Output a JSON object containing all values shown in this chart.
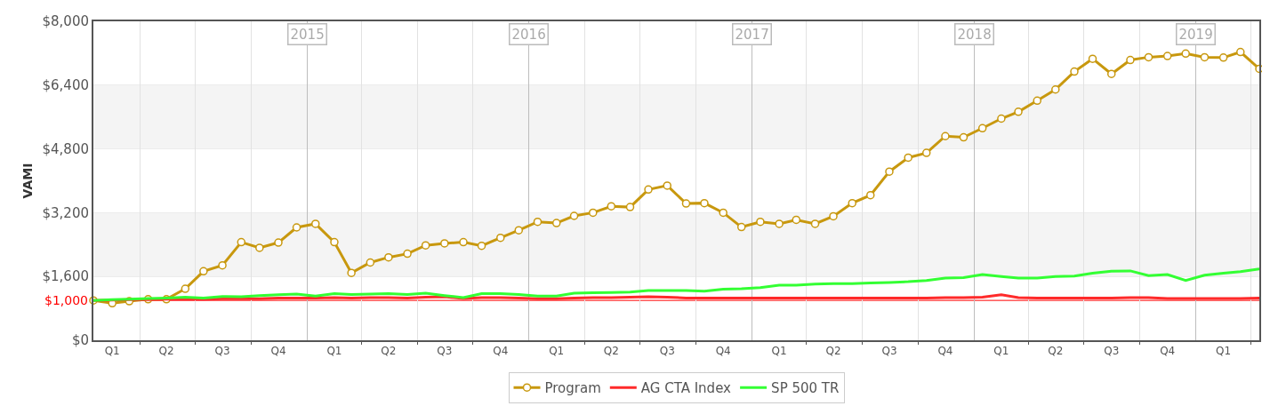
{
  "chart_data": {
    "type": "line",
    "ylabel": "VAMI",
    "x": [
      "2014-01-15",
      "2014-02-15",
      "2014-03-15",
      "2014-04-15",
      "2014-05-15",
      "2014-06-15",
      "2014-07-15",
      "2014-08-15",
      "2014-09-15",
      "2014-10-15",
      "2014-11-15",
      "2014-12-15",
      "2015-01-15",
      "2015-02-15",
      "2015-03-15",
      "2015-04-15",
      "2015-05-15",
      "2015-06-15",
      "2015-07-15",
      "2015-08-15",
      "2015-09-15",
      "2015-10-15",
      "2015-11-15",
      "2015-12-15",
      "2016-01-15",
      "2016-02-15",
      "2016-03-15",
      "2016-04-15",
      "2016-05-15",
      "2016-06-15",
      "2016-07-15",
      "2016-08-15",
      "2016-09-15",
      "2016-10-15",
      "2016-11-15",
      "2016-12-15",
      "2017-01-15",
      "2017-02-15",
      "2017-03-15",
      "2017-04-15",
      "2017-05-15",
      "2017-06-15",
      "2017-07-15",
      "2017-08-15",
      "2017-09-15",
      "2017-10-15",
      "2017-11-15",
      "2017-12-15",
      "2018-01-15",
      "2018-02-15",
      "2018-03-15",
      "2018-04-15",
      "2018-05-15",
      "2018-06-15",
      "2018-07-15",
      "2018-08-15",
      "2018-09-15",
      "2018-10-15",
      "2018-11-15",
      "2018-12-15",
      "2019-01-15",
      "2019-02-15",
      "2019-03-15",
      "2019-04-15"
    ],
    "series": [
      {
        "name": "Program",
        "color": "#c8980e",
        "marker": "circle",
        "values": [
          1000,
          930,
          980,
          1030,
          1030,
          1290,
          1730,
          1880,
          2460,
          2320,
          2450,
          2830,
          2920,
          2460,
          1690,
          1950,
          2080,
          2170,
          2380,
          2430,
          2460,
          2370,
          2570,
          2760,
          2970,
          2940,
          3120,
          3200,
          3360,
          3340,
          3780,
          3880,
          3430,
          3440,
          3200,
          2840,
          2970,
          2920,
          3020,
          2920,
          3110,
          3440,
          3640,
          4230,
          4580,
          4700,
          5120,
          5090,
          5320,
          5560,
          5730,
          6010,
          6290,
          6740,
          7060,
          6680,
          7030,
          7100,
          7130,
          7190,
          7100,
          7090,
          7230,
          6810
        ]
      },
      {
        "name": "AG CTA Index",
        "color": "#ff2a2a",
        "marker": "none",
        "values": [
          1000,
          1010,
          1020,
          1020,
          1030,
          1030,
          1030,
          1040,
          1040,
          1040,
          1060,
          1060,
          1060,
          1070,
          1060,
          1070,
          1070,
          1060,
          1080,
          1090,
          1050,
          1070,
          1070,
          1060,
          1040,
          1040,
          1060,
          1070,
          1070,
          1080,
          1090,
          1080,
          1060,
          1060,
          1060,
          1060,
          1060,
          1060,
          1060,
          1060,
          1060,
          1060,
          1060,
          1060,
          1060,
          1060,
          1070,
          1070,
          1080,
          1140,
          1070,
          1060,
          1060,
          1060,
          1060,
          1060,
          1070,
          1070,
          1050,
          1050,
          1050,
          1050,
          1050,
          1060
        ]
      },
      {
        "name": "SP 500 TR",
        "color": "#33ff33",
        "marker": "none",
        "values": [
          1000,
          1020,
          1030,
          1050,
          1060,
          1080,
          1060,
          1100,
          1090,
          1120,
          1140,
          1160,
          1110,
          1170,
          1150,
          1160,
          1170,
          1150,
          1180,
          1120,
          1070,
          1170,
          1170,
          1150,
          1110,
          1110,
          1180,
          1190,
          1200,
          1210,
          1250,
          1250,
          1250,
          1230,
          1280,
          1290,
          1320,
          1380,
          1380,
          1410,
          1420,
          1420,
          1440,
          1450,
          1470,
          1500,
          1560,
          1570,
          1650,
          1600,
          1560,
          1560,
          1600,
          1610,
          1680,
          1730,
          1740,
          1620,
          1650,
          1500,
          1630,
          1680,
          1720,
          1790
        ]
      }
    ],
    "xlim": [
      "2014-01-15",
      "2019-04-15"
    ],
    "xticks": [
      {
        "value": "2014-02-15",
        "label": "Q1"
      },
      {
        "value": "2014-04-01",
        "label": null
      },
      {
        "value": "2014-05-15",
        "label": "Q2"
      },
      {
        "value": "2014-07-01",
        "label": null
      },
      {
        "value": "2014-08-15",
        "label": "Q3"
      },
      {
        "value": "2014-10-01",
        "label": null
      },
      {
        "value": "2014-11-15",
        "label": "Q4"
      },
      {
        "value": "2015-02-15",
        "label": "Q1"
      },
      {
        "value": "2015-04-01",
        "label": null
      },
      {
        "value": "2015-05-15",
        "label": "Q2"
      },
      {
        "value": "2015-07-01",
        "label": null
      },
      {
        "value": "2015-08-15",
        "label": "Q3"
      },
      {
        "value": "2015-10-01",
        "label": null
      },
      {
        "value": "2015-11-15",
        "label": "Q4"
      },
      {
        "value": "2016-02-15",
        "label": "Q1"
      },
      {
        "value": "2016-04-01",
        "label": null
      },
      {
        "value": "2016-05-15",
        "label": "Q2"
      },
      {
        "value": "2016-07-01",
        "label": null
      },
      {
        "value": "2016-08-15",
        "label": "Q3"
      },
      {
        "value": "2016-10-01",
        "label": null
      },
      {
        "value": "2016-11-15",
        "label": "Q4"
      },
      {
        "value": "2017-02-15",
        "label": "Q1"
      },
      {
        "value": "2017-04-01",
        "label": null
      },
      {
        "value": "2017-05-15",
        "label": "Q2"
      },
      {
        "value": "2017-07-01",
        "label": null
      },
      {
        "value": "2017-08-15",
        "label": "Q3"
      },
      {
        "value": "2017-10-01",
        "label": null
      },
      {
        "value": "2017-11-15",
        "label": "Q4"
      },
      {
        "value": "2018-02-15",
        "label": "Q1"
      },
      {
        "value": "2018-04-01",
        "label": null
      },
      {
        "value": "2018-05-15",
        "label": "Q2"
      },
      {
        "value": "2018-07-01",
        "label": null
      },
      {
        "value": "2018-08-15",
        "label": "Q3"
      },
      {
        "value": "2018-10-01",
        "label": null
      },
      {
        "value": "2018-11-15",
        "label": "Q4"
      },
      {
        "value": "2019-02-15",
        "label": "Q1"
      },
      {
        "value": "2019-04-01",
        "label": null
      }
    ],
    "x2lim": [
      "2014-01-15",
      "2019-04-15"
    ],
    "x2ticks": [
      {
        "value": "2015-01-01",
        "label": "2015"
      },
      {
        "value": "2016-01-01",
        "label": "2016"
      },
      {
        "value": "2017-01-01",
        "label": "2017"
      },
      {
        "value": "2018-01-01",
        "label": "2018"
      },
      {
        "value": "2019-01-01",
        "label": "2019"
      }
    ],
    "ylim": [
      0,
      8000
    ],
    "yticks": [
      {
        "value": 0,
        "label": "$0"
      },
      {
        "value": 1600,
        "label": "$1,600"
      },
      {
        "value": 3200,
        "label": "$3,200"
      },
      {
        "value": 4800,
        "label": "$4,800"
      },
      {
        "value": 6400,
        "label": "$6,400"
      },
      {
        "value": 8000,
        "label": "$8,000"
      }
    ],
    "ref_lines": [
      {
        "axis": "y",
        "value": 1000,
        "label": "$1,000",
        "color": "#ff0000"
      }
    ],
    "bands": [
      {
        "axis": "y",
        "from": 1600,
        "to": 3200,
        "color": "#f4f4f4"
      },
      {
        "axis": "y",
        "from": 4800,
        "to": 6400,
        "color": "#f4f4f4"
      }
    ],
    "grid": true,
    "legend": "bottom",
    "line_style": "solid"
  }
}
